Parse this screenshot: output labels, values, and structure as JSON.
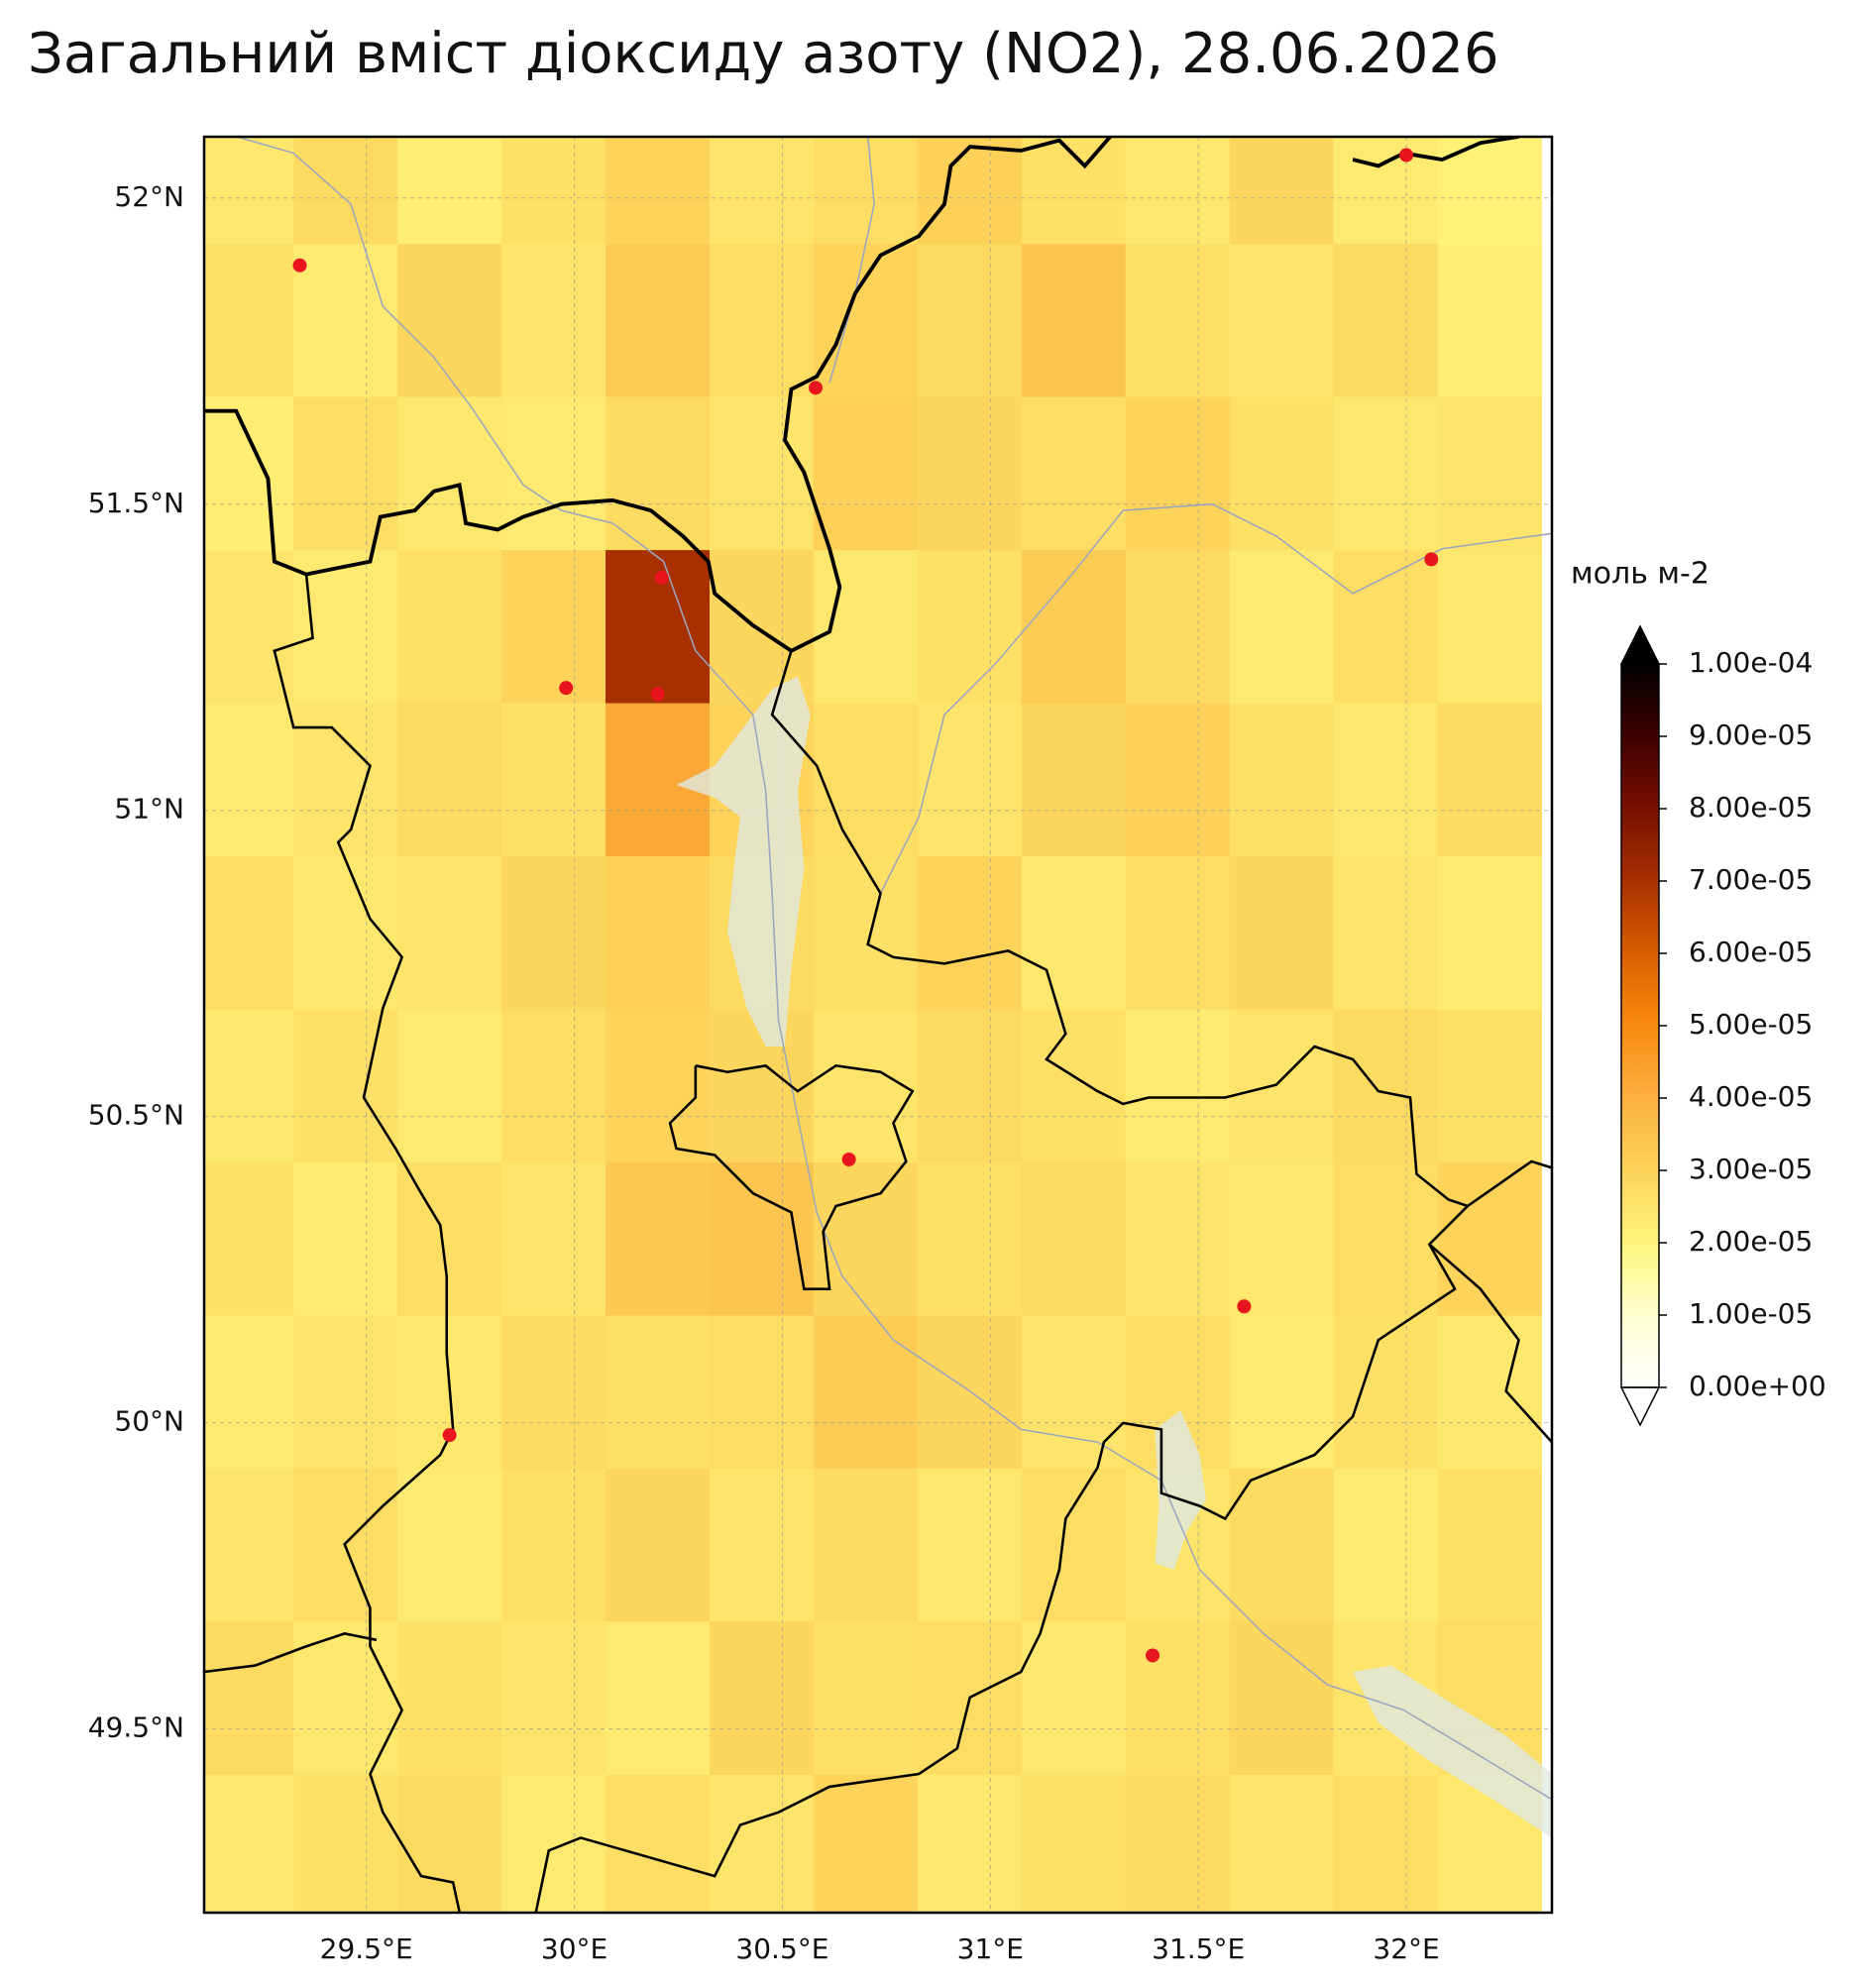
{
  "chart_data": {
    "type": "heatmap",
    "title": "Загальний вміст діоксиду азоту (NO2), 28.06.2026",
    "colorbar_label": "моль м-2",
    "x": [
      29.2,
      29.45,
      29.7,
      29.95,
      30.2,
      30.45,
      30.7,
      30.95,
      31.2,
      31.45,
      31.7,
      31.95,
      32.2
    ],
    "y": [
      52.05,
      51.8,
      51.55,
      51.3,
      51.05,
      50.8,
      50.55,
      50.3,
      50.05,
      49.8,
      49.55,
      49.3
    ],
    "values": [
      [
        2.4e-05,
        2.8e-05,
        2.2e-05,
        2.6e-05,
        3e-05,
        2.5e-05,
        2.7e-05,
        3.1e-05,
        2.6e-05,
        2.4e-05,
        2.9e-05,
        2.3e-05,
        2.1e-05
      ],
      [
        2.6e-05,
        2.3e-05,
        2.9e-05,
        2.5e-05,
        3.2e-05,
        2.7e-05,
        3e-05,
        2.8e-05,
        3.4e-05,
        2.6e-05,
        2.5e-05,
        2.8e-05,
        2.2e-05
      ],
      [
        2.2e-05,
        2.7e-05,
        2.4e-05,
        2.3e-05,
        2.8e-05,
        2.5e-05,
        3.1e-05,
        2.9e-05,
        2.7e-05,
        3e-05,
        2.6e-05,
        2.4e-05,
        2.5e-05
      ],
      [
        2.5e-05,
        2.3e-05,
        2.6e-05,
        3e-05,
        7e-05,
        2.9e-05,
        2.4e-05,
        2.6e-05,
        3.2e-05,
        2.8e-05,
        2.3e-05,
        2.7e-05,
        2.4e-05
      ],
      [
        2.3e-05,
        2.5e-05,
        2.8e-05,
        2.6e-05,
        4.2e-05,
        3e-05,
        2.7e-05,
        2.5e-05,
        2.9e-05,
        3.1e-05,
        2.6e-05,
        2.4e-05,
        2.8e-05
      ],
      [
        2.7e-05,
        2.4e-05,
        2.5e-05,
        2.9e-05,
        3.1e-05,
        2.8e-05,
        2.6e-05,
        3e-05,
        2.4e-05,
        2.7e-05,
        2.9e-05,
        2.5e-05,
        2.3e-05
      ],
      [
        2.4e-05,
        2.6e-05,
        2.3e-05,
        2.7e-05,
        3e-05,
        2.9e-05,
        2.5e-05,
        2.8e-05,
        2.6e-05,
        2.3e-05,
        2.5e-05,
        2.8e-05,
        2.6e-05
      ],
      [
        2.6e-05,
        2.3e-05,
        2.7e-05,
        2.5e-05,
        3.3e-05,
        3.4e-05,
        2.9e-05,
        2.6e-05,
        2.8e-05,
        2.5e-05,
        2.4e-05,
        2.7e-05,
        3e-05
      ],
      [
        2.3e-05,
        2.5e-05,
        2.4e-05,
        2.8e-05,
        2.6e-05,
        2.7e-05,
        3.2e-05,
        2.9e-05,
        2.5e-05,
        2.7e-05,
        2.3e-05,
        2.6e-05,
        2.4e-05
      ],
      [
        2.5e-05,
        2.7e-05,
        2.3e-05,
        2.6e-05,
        2.9e-05,
        2.5e-05,
        2.8e-05,
        2.4e-05,
        2.7e-05,
        2.5e-05,
        2.8e-05,
        2.3e-05,
        2.6e-05
      ],
      [
        2.8e-05,
        2.4e-05,
        2.6e-05,
        2.5e-05,
        2.3e-05,
        2.9e-05,
        2.6e-05,
        2.7e-05,
        2.4e-05,
        2.6e-05,
        2.9e-05,
        2.5e-05,
        2.7e-05
      ],
      [
        2.4e-05,
        2.6e-05,
        2.8e-05,
        2.3e-05,
        2.7e-05,
        2.5e-05,
        3e-05,
        2.4e-05,
        2.6e-05,
        2.8e-05,
        2.5e-05,
        2.7e-05,
        2.4e-05
      ]
    ],
    "xlim": [
      29.11,
      32.35
    ],
    "ylim": [
      49.2,
      52.1
    ],
    "xticks": [
      {
        "value": 29.5,
        "label": "29.5°E"
      },
      {
        "value": 30,
        "label": "30°E"
      },
      {
        "value": 30.5,
        "label": "30.5°E"
      },
      {
        "value": 31,
        "label": "31°E"
      },
      {
        "value": 31.5,
        "label": "31.5°E"
      },
      {
        "value": 32,
        "label": "32°E"
      }
    ],
    "yticks": [
      {
        "value": 49.5,
        "label": "49.5°N"
      },
      {
        "value": 50,
        "label": "50°N"
      },
      {
        "value": 50.5,
        "label": "50.5°N"
      },
      {
        "value": 51,
        "label": "51°N"
      },
      {
        "value": 51.5,
        "label": "51.5°N"
      },
      {
        "value": 52,
        "label": "52°N"
      }
    ],
    "grid": true,
    "colorbar": {
      "lim": [
        0,
        0.0001
      ],
      "ticks": [
        {
          "value": 0,
          "label": "0.00e+00"
        },
        {
          "value": 1e-05,
          "label": "1.00e-05"
        },
        {
          "value": 2e-05,
          "label": "2.00e-05"
        },
        {
          "value": 3e-05,
          "label": "3.00e-05"
        },
        {
          "value": 4e-05,
          "label": "4.00e-05"
        },
        {
          "value": 5e-05,
          "label": "5.00e-05"
        },
        {
          "value": 6e-05,
          "label": "6.00e-05"
        },
        {
          "value": 7e-05,
          "label": "7.00e-05"
        },
        {
          "value": 8e-05,
          "label": "8.00e-05"
        },
        {
          "value": 9e-05,
          "label": "9.00e-05"
        },
        {
          "value": 0.0001,
          "label": "1.00e-04"
        }
      ],
      "colormap": [
        "#ffffff",
        "#ffffd0",
        "#fff47a",
        "#fdd35a",
        "#fbb040",
        "#f88a10",
        "#d86000",
        "#a83000",
        "#781000",
        "#400000",
        "#000000"
      ],
      "extend": "both"
    },
    "points": {
      "x": [
        29.34,
        30.58,
        32.0,
        32.06,
        29.98,
        30.2,
        30.21,
        30.66,
        31.61,
        29.7,
        31.39
      ],
      "y": [
        51.89,
        51.69,
        52.07,
        51.41,
        51.2,
        51.19,
        51.38,
        50.43,
        50.19,
        49.98,
        49.62
      ],
      "color": "#e8141e"
    }
  }
}
